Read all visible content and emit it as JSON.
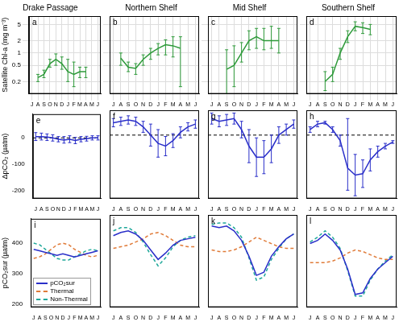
{
  "chart_data": [
    {
      "type": "line",
      "title": "Drake Passage",
      "annotation": "a",
      "ylabel": "Satellite Chl-a (mg m⁻³)",
      "categories": [
        "J",
        "A",
        "S",
        "O",
        "N",
        "D",
        "J",
        "F",
        "M",
        "A",
        "M",
        "J"
      ],
      "series": [
        {
          "color": "#2e9a3a",
          "line_style": "solid",
          "marker": "none",
          "values": [
            null,
            0.25,
            0.3,
            0.55,
            0.7,
            0.55,
            0.35,
            0.3,
            0.35,
            0.35,
            null,
            null
          ],
          "lower": [
            null,
            0.2,
            0.25,
            0.45,
            0.5,
            0.4,
            0.2,
            0.15,
            0.25,
            0.25,
            null,
            null
          ],
          "upper": [
            null,
            0.3,
            0.38,
            0.7,
            0.95,
            0.8,
            0.7,
            0.6,
            0.45,
            0.45,
            null,
            null
          ]
        }
      ],
      "ylim": [
        0.1,
        8
      ],
      "yticks": [
        0.2,
        0.5,
        1,
        2,
        5
      ],
      "log": "y",
      "grid": true
    },
    {
      "type": "line",
      "title": "Northern Shelf",
      "annotation": "b",
      "categories": [
        "J",
        "A",
        "S",
        "O",
        "N",
        "D",
        "J",
        "F",
        "M",
        "A",
        "M",
        "J"
      ],
      "series": [
        {
          "color": "#2e9a3a",
          "line_style": "solid",
          "marker": "none",
          "values": [
            null,
            0.75,
            0.45,
            0.42,
            0.7,
            1.0,
            1.3,
            1.6,
            1.5,
            1.3,
            null,
            null
          ],
          "lower": [
            null,
            0.5,
            0.35,
            0.3,
            0.5,
            0.7,
            0.9,
            0.9,
            0.8,
            0.15,
            null,
            null
          ],
          "upper": [
            null,
            1.0,
            0.6,
            0.55,
            0.9,
            1.3,
            1.7,
            2.1,
            2.5,
            2.5,
            null,
            null
          ]
        }
      ],
      "ylim": [
        0.1,
        8
      ],
      "yticks": [
        0.2,
        0.5,
        1,
        2,
        5
      ],
      "log": "y",
      "grid": true,
      "tick_labels": "x"
    },
    {
      "type": "line",
      "title": "Mid Shelf",
      "annotation": "c",
      "categories": [
        "J",
        "A",
        "S",
        "O",
        "N",
        "D",
        "J",
        "F",
        "M",
        "A",
        "M",
        "J"
      ],
      "series": [
        {
          "color": "#2e9a3a",
          "line_style": "solid",
          "marker": "none",
          "values": [
            null,
            null,
            0.4,
            0.5,
            1.0,
            2.0,
            2.5,
            2.0,
            2.0,
            2.0,
            null,
            null
          ],
          "lower": [
            null,
            null,
            0.08,
            0.15,
            0.6,
            1.2,
            1.3,
            1.2,
            1.3,
            1.0,
            null,
            null
          ],
          "upper": [
            null,
            null,
            1.2,
            1.5,
            1.8,
            3.5,
            4,
            4,
            4.5,
            4,
            null,
            null
          ]
        }
      ],
      "ylim": [
        0.1,
        8
      ],
      "yticks": [
        0.2,
        0.5,
        1,
        2,
        5
      ],
      "log": "y",
      "grid": true,
      "tick_labels": "x"
    },
    {
      "type": "line",
      "title": "Southern Shelf",
      "annotation": "d",
      "categories": [
        "J",
        "A",
        "S",
        "O",
        "N",
        "D",
        "J",
        "F",
        "M",
        "A",
        "M",
        "J"
      ],
      "series": [
        {
          "color": "#2e9a3a",
          "line_style": "solid",
          "marker": "none",
          "values": [
            null,
            null,
            0.2,
            0.3,
            1.0,
            2.5,
            4.5,
            4.2,
            3.8,
            null,
            null,
            null
          ],
          "lower": [
            null,
            null,
            0.12,
            0.2,
            0.7,
            1.8,
            3.5,
            3,
            2.8,
            null,
            null,
            null
          ],
          "upper": [
            null,
            null,
            0.35,
            0.45,
            1.3,
            3.5,
            5.8,
            5.5,
            5,
            null,
            null,
            null
          ]
        }
      ],
      "ylim": [
        0.1,
        8
      ],
      "yticks": [
        0.2,
        0.5,
        1,
        2,
        5
      ],
      "log": "y",
      "grid": true,
      "tick_labels": "x"
    },
    {
      "type": "line",
      "annotation": "e",
      "ylabel": "ΔpCO₂ (µatm)",
      "hline": 0,
      "categories": [
        "J",
        "A",
        "S",
        "O",
        "N",
        "D",
        "J",
        "F",
        "M",
        "A",
        "M",
        "J"
      ],
      "series": [
        {
          "color": "#2a2fc9",
          "line_style": "solid",
          "marker": "none",
          "values": [
            5,
            5,
            3,
            0,
            -5,
            -8,
            -5,
            -10,
            -5,
            -3,
            0,
            0
          ],
          "lower": [
            -10,
            -8,
            -10,
            -12,
            -15,
            -20,
            -18,
            -22,
            -15,
            -12,
            -8,
            -8
          ],
          "upper": [
            20,
            18,
            15,
            12,
            5,
            5,
            8,
            2,
            5,
            6,
            8,
            8
          ]
        }
      ],
      "ylim": [
        -230,
        90
      ],
      "yticks": [
        -200,
        -100,
        0
      ],
      "grid": false
    },
    {
      "type": "line",
      "annotation": "f",
      "hline": 0,
      "categories": [
        "J",
        "A",
        "S",
        "O",
        "N",
        "D",
        "J",
        "F",
        "M",
        "A",
        "M",
        "J"
      ],
      "series": [
        {
          "color": "#2a2fc9",
          "line_style": "solid",
          "marker": "none",
          "values": [
            45,
            50,
            55,
            50,
            30,
            0,
            -30,
            -40,
            -20,
            10,
            30,
            40
          ],
          "lower": [
            30,
            35,
            40,
            35,
            10,
            -40,
            -80,
            -75,
            -45,
            -10,
            15,
            25
          ],
          "upper": [
            60,
            65,
            70,
            65,
            50,
            40,
            20,
            -5,
            5,
            30,
            45,
            55
          ]
        }
      ],
      "ylim": [
        -230,
        90
      ],
      "yticks": [
        -200,
        -100,
        0
      ],
      "grid": false,
      "tick_labels": "x"
    },
    {
      "type": "line",
      "annotation": "g",
      "hline": 0,
      "categories": [
        "J",
        "A",
        "S",
        "O",
        "N",
        "D",
        "J",
        "F",
        "M",
        "A",
        "M",
        "J"
      ],
      "series": [
        {
          "color": "#2a2fc9",
          "line_style": "solid",
          "marker": "none",
          "values": [
            60,
            50,
            55,
            60,
            20,
            -40,
            -80,
            -80,
            -50,
            0,
            20,
            40
          ],
          "lower": [
            40,
            30,
            35,
            40,
            -10,
            -100,
            -150,
            -140,
            -100,
            -30,
            0,
            25
          ],
          "upper": [
            80,
            70,
            75,
            80,
            50,
            20,
            -10,
            -20,
            0,
            30,
            40,
            55
          ]
        }
      ],
      "ylim": [
        -230,
        90
      ],
      "yticks": [
        -200,
        -100,
        0
      ],
      "grid": false,
      "tick_labels": "x"
    },
    {
      "type": "line",
      "annotation": "h",
      "hline": 0,
      "categories": [
        "J",
        "A",
        "S",
        "O",
        "N",
        "D",
        "J",
        "F",
        "M",
        "A",
        "M",
        "J"
      ],
      "series": [
        {
          "color": "#2a2fc9",
          "line_style": "solid",
          "marker": "none",
          "values": [
            20,
            40,
            45,
            20,
            -20,
            -120,
            -145,
            -140,
            -90,
            -60,
            -40,
            -25
          ],
          "lower": [
            10,
            30,
            40,
            10,
            -40,
            -200,
            -220,
            -190,
            -130,
            -80,
            -50,
            -30
          ],
          "upper": [
            30,
            50,
            50,
            30,
            0,
            60,
            -70,
            -90,
            -50,
            -40,
            -30,
            -20
          ]
        }
      ],
      "ylim": [
        -230,
        90
      ],
      "yticks": [
        -200,
        -100,
        0
      ],
      "grid": false,
      "tick_labels": "x"
    },
    {
      "type": "line",
      "annotation": "i",
      "ylabel": "pCO₂sur (µatm)",
      "legend": "lower left",
      "categories": [
        "J",
        "A",
        "S",
        "O",
        "N",
        "D",
        "J",
        "F",
        "M",
        "A",
        "M",
        "J"
      ],
      "series": [
        {
          "name": "pCO₂sur",
          "color": "#2a2fc9",
          "line_style": "solid",
          "marker": "none",
          "values": [
            380,
            375,
            370,
            365,
            360,
            365,
            360,
            355,
            360,
            365,
            370,
            375
          ]
        },
        {
          "name": "Thermal",
          "color": "#e07b39",
          "line_style": "dashed",
          "marker": "none",
          "values": [
            350,
            355,
            365,
            380,
            395,
            400,
            395,
            380,
            370,
            360,
            355,
            360
          ]
        },
        {
          "name": "Non-Thermal",
          "color": "#1fa89a",
          "line_style": "dashed",
          "marker": "none",
          "values": [
            400,
            395,
            380,
            365,
            350,
            345,
            345,
            355,
            365,
            375,
            380,
            375
          ]
        }
      ],
      "ylim": [
        190,
        480
      ],
      "yticks": [
        200,
        300,
        400
      ],
      "grid": false
    },
    {
      "type": "line",
      "annotation": "j",
      "categories": [
        "J",
        "A",
        "S",
        "O",
        "N",
        "D",
        "J",
        "F",
        "M",
        "A",
        "M",
        "J"
      ],
      "series": [
        {
          "name": "pCO₂sur",
          "color": "#2a2fc9",
          "line_style": "solid",
          "marker": "none",
          "values": [
            415,
            425,
            430,
            420,
            400,
            370,
            340,
            360,
            385,
            400,
            405,
            410
          ]
        },
        {
          "name": "Thermal",
          "color": "#e07b39",
          "line_style": "dashed",
          "marker": "none",
          "values": [
            375,
            380,
            385,
            395,
            405,
            420,
            425,
            415,
            400,
            385,
            380,
            380
          ]
        },
        {
          "name": "Non-Thermal",
          "color": "#1fa89a",
          "line_style": "dashed",
          "marker": "none",
          "values": [
            430,
            440,
            440,
            425,
            395,
            355,
            320,
            345,
            380,
            400,
            410,
            415
          ]
        }
      ],
      "ylim": [
        190,
        480
      ],
      "yticks": [
        200,
        300,
        400
      ],
      "grid": false,
      "tick_labels": "x"
    },
    {
      "type": "line",
      "annotation": "k",
      "categories": [
        "J",
        "A",
        "S",
        "O",
        "N",
        "D",
        "J",
        "F",
        "M",
        "A",
        "M",
        "J"
      ],
      "series": [
        {
          "name": "pCO₂sur",
          "color": "#2a2fc9",
          "line_style": "solid",
          "marker": "none",
          "values": [
            445,
            440,
            445,
            430,
            400,
            350,
            290,
            300,
            350,
            380,
            405,
            420
          ]
        },
        {
          "name": "Thermal",
          "color": "#e07b39",
          "line_style": "dashed",
          "marker": "none",
          "values": [
            370,
            365,
            365,
            370,
            380,
            395,
            410,
            400,
            390,
            380,
            375,
            375
          ]
        },
        {
          "name": "Non-Thermal",
          "color": "#1fa89a",
          "line_style": "dashed",
          "marker": "none",
          "values": [
            450,
            455,
            455,
            440,
            410,
            345,
            275,
            285,
            340,
            375,
            405,
            420
          ]
        }
      ],
      "ylim": [
        190,
        480
      ],
      "yticks": [
        200,
        300,
        400
      ],
      "grid": false,
      "tick_labels": "x"
    },
    {
      "type": "line",
      "annotation": "l",
      "categories": [
        "J",
        "A",
        "S",
        "O",
        "N",
        "D",
        "J",
        "F",
        "M",
        "A",
        "M",
        "J"
      ],
      "series": [
        {
          "name": "pCO₂sur",
          "color": "#2a2fc9",
          "line_style": "solid",
          "marker": "none",
          "values": [
            390,
            400,
            420,
            400,
            370,
            310,
            230,
            235,
            280,
            310,
            330,
            350
          ]
        },
        {
          "name": "Thermal",
          "color": "#e07b39",
          "line_style": "dashed",
          "marker": "none",
          "values": [
            330,
            330,
            330,
            335,
            345,
            360,
            370,
            365,
            355,
            345,
            340,
            340
          ]
        },
        {
          "name": "Non-Thermal",
          "color": "#1fa89a",
          "line_style": "dashed",
          "marker": "none",
          "values": [
            395,
            410,
            430,
            410,
            375,
            305,
            225,
            225,
            275,
            310,
            335,
            355
          ]
        }
      ],
      "ylim": [
        190,
        480
      ],
      "yticks": [
        200,
        300,
        400
      ],
      "grid": false,
      "tick_labels": "x"
    }
  ]
}
